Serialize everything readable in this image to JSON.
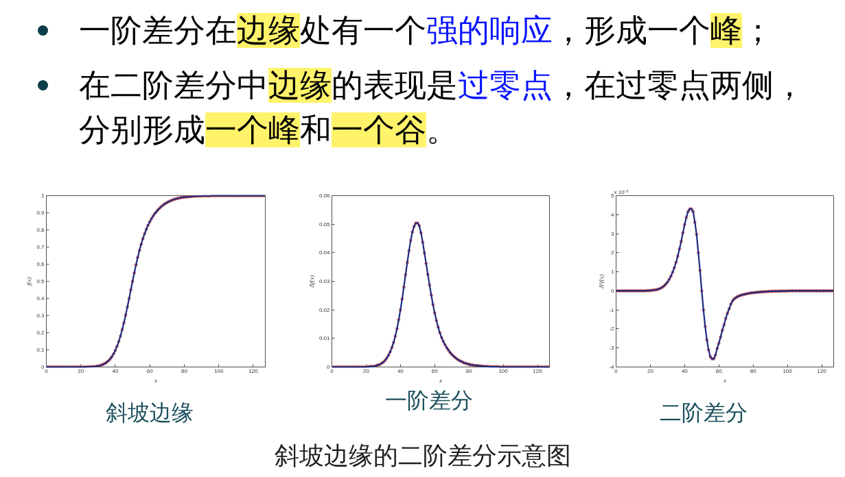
{
  "chart_data": [
    {
      "type": "other",
      "annotations": [
        "一阶差分在",
        "边缘",
        "处有一个",
        "强的响应",
        "，形成一个",
        "峰",
        "；",
        "在二阶差分中",
        "边缘",
        "的表现是",
        "过零点",
        "，在过零点两侧，",
        "分别形成",
        "一个峰",
        "和",
        "一个谷",
        "。"
      ]
    },
    {
      "type": "line",
      "title": "斜坡边缘",
      "xlabel": "x",
      "ylabel": "f(x)",
      "xlim": [
        0,
        127
      ],
      "ylim": [
        0,
        1
      ],
      "xticks": [
        0,
        20,
        40,
        60,
        80,
        100,
        120
      ],
      "yticks": [
        0,
        0.1,
        0.2,
        0.3,
        0.4,
        0.5,
        0.6,
        0.7,
        0.8,
        0.9,
        1
      ],
      "x": [
        0,
        1,
        2,
        3,
        4,
        5,
        6,
        7,
        8,
        9,
        10,
        11,
        12,
        13,
        14,
        15,
        16,
        17,
        18,
        19,
        20,
        21,
        22,
        23,
        24,
        25,
        26,
        27,
        28,
        29,
        30,
        31,
        32,
        33,
        34,
        35,
        36,
        37,
        38,
        39,
        40,
        41,
        42,
        43,
        44,
        45,
        46,
        47,
        48,
        49,
        50,
        51,
        52,
        53,
        54,
        55,
        56,
        57,
        58,
        59,
        60,
        61,
        62,
        63,
        64,
        65,
        66,
        67,
        68,
        69,
        70,
        71,
        72,
        73,
        74,
        75,
        76,
        77,
        78,
        79,
        80,
        81,
        82,
        83,
        84,
        85,
        86,
        87,
        88,
        89,
        90,
        91,
        92,
        93,
        94,
        95,
        96,
        97,
        98,
        99,
        100,
        101,
        102,
        103,
        104,
        105,
        106,
        107,
        108,
        109,
        110,
        111,
        112,
        113,
        114,
        115,
        116,
        117,
        118,
        119,
        120,
        121,
        122,
        123,
        124,
        125,
        126,
        127
      ],
      "series": [
        {
          "type": "scatter",
          "color": "#c0302a",
          "marker": "cross",
          "values": [
            0,
            0,
            0,
            0,
            0,
            0,
            0,
            0,
            0,
            0,
            0,
            0,
            0,
            0,
            0,
            0,
            0,
            0,
            0,
            0,
            0,
            0,
            0,
            0,
            0.001,
            0.001,
            0.001,
            0.002,
            0.003,
            0.004,
            0.006,
            0.008,
            0.011,
            0.016,
            0.021,
            0.028,
            0.036,
            0.047,
            0.06,
            0.077,
            0.097,
            0.121,
            0.149,
            0.181,
            0.218,
            0.258,
            0.303,
            0.35,
            0.399,
            0.45,
            0.5,
            0.549,
            0.596,
            0.64,
            0.68,
            0.716,
            0.749,
            0.778,
            0.804,
            0.827,
            0.848,
            0.866,
            0.882,
            0.896,
            0.909,
            0.92,
            0.93,
            0.939,
            0.947,
            0.954,
            0.96,
            0.965,
            0.97,
            0.974,
            0.978,
            0.981,
            0.984,
            0.986,
            0.988,
            0.99,
            0.991,
            0.992,
            0.993,
            0.994,
            0.995,
            0.996,
            0.997,
            0.997,
            0.998,
            0.998,
            0.998,
            0.999,
            0.999,
            0.999,
            0.999,
            0.999,
            1,
            1,
            1,
            1,
            1,
            1,
            1,
            1,
            1,
            1,
            1,
            1,
            1,
            1,
            1,
            1,
            1,
            1,
            1,
            1,
            1,
            1,
            1,
            1,
            1,
            1,
            1,
            1,
            1,
            1,
            1,
            1
          ]
        },
        {
          "type": "line",
          "color": "#1c2a80",
          "values": [
            0,
            0,
            0,
            0,
            0,
            0,
            0,
            0,
            0,
            0,
            0,
            0,
            0,
            0,
            0,
            0,
            0,
            0,
            0,
            0,
            0,
            0,
            0,
            0,
            0.001,
            0.001,
            0.001,
            0.002,
            0.003,
            0.004,
            0.006,
            0.008,
            0.011,
            0.016,
            0.021,
            0.028,
            0.036,
            0.047,
            0.06,
            0.077,
            0.097,
            0.121,
            0.149,
            0.181,
            0.218,
            0.258,
            0.303,
            0.35,
            0.399,
            0.45,
            0.5,
            0.549,
            0.596,
            0.64,
            0.68,
            0.716,
            0.749,
            0.778,
            0.804,
            0.827,
            0.848,
            0.866,
            0.882,
            0.896,
            0.909,
            0.92,
            0.93,
            0.939,
            0.947,
            0.954,
            0.96,
            0.965,
            0.97,
            0.974,
            0.978,
            0.981,
            0.984,
            0.986,
            0.988,
            0.99,
            0.991,
            0.992,
            0.993,
            0.994,
            0.995,
            0.996,
            0.997,
            0.997,
            0.998,
            0.998,
            0.998,
            0.999,
            0.999,
            0.999,
            0.999,
            0.999,
            1,
            1,
            1,
            1,
            1,
            1,
            1,
            1,
            1,
            1,
            1,
            1,
            1,
            1,
            1,
            1,
            1,
            1,
            1,
            1,
            1,
            1,
            1,
            1,
            1,
            1,
            1,
            1,
            1,
            1,
            1,
            1
          ]
        }
      ]
    },
    {
      "type": "line",
      "title": "一阶差分",
      "xlabel": "x",
      "ylabel": "Δf(x)",
      "xlim": [
        0,
        127
      ],
      "ylim": [
        0,
        0.06
      ],
      "xticks": [
        0,
        20,
        40,
        60,
        80,
        100,
        120
      ],
      "yticks": [
        0,
        0.01,
        0.02,
        0.03,
        0.04,
        0.05,
        0.06
      ],
      "x": [
        0,
        1,
        2,
        3,
        4,
        5,
        6,
        7,
        8,
        9,
        10,
        11,
        12,
        13,
        14,
        15,
        16,
        17,
        18,
        19,
        20,
        21,
        22,
        23,
        24,
        25,
        26,
        27,
        28,
        29,
        30,
        31,
        32,
        33,
        34,
        35,
        36,
        37,
        38,
        39,
        40,
        41,
        42,
        43,
        44,
        45,
        46,
        47,
        48,
        49,
        50,
        51,
        52,
        53,
        54,
        55,
        56,
        57,
        58,
        59,
        60,
        61,
        62,
        63,
        64,
        65,
        66,
        67,
        68,
        69,
        70,
        71,
        72,
        73,
        74,
        75,
        76,
        77,
        78,
        79,
        80,
        81,
        82,
        83,
        84,
        85,
        86,
        87,
        88,
        89,
        90,
        91,
        92,
        93,
        94,
        95,
        96,
        97,
        98,
        99,
        100,
        101,
        102,
        103,
        104,
        105,
        106,
        107,
        108,
        109,
        110,
        111,
        112,
        113,
        114,
        115,
        116,
        117,
        118,
        119,
        120,
        121,
        122,
        123,
        124,
        125,
        126,
        127
      ],
      "series": [
        {
          "type": "scatter",
          "color": "#c0302a",
          "marker": "cross",
          "values": [
            0,
            0,
            0,
            0,
            0,
            0,
            0,
            0,
            0,
            0,
            0,
            0,
            0,
            0,
            0,
            0,
            0,
            0,
            0,
            0,
            0,
            0.0001,
            0.0001,
            0.0002,
            0.0002,
            0.0003,
            0.0005,
            0.0007,
            0.0009,
            0.0013,
            0.0017,
            0.0023,
            0.0031,
            0.0041,
            0.0053,
            0.0068,
            0.0086,
            0.0108,
            0.0134,
            0.0165,
            0.02,
            0.0238,
            0.028,
            0.0323,
            0.0366,
            0.0407,
            0.0443,
            0.0473,
            0.0493,
            0.0504,
            0.0504,
            0.0495,
            0.047,
            0.0437,
            0.04,
            0.0362,
            0.0324,
            0.0287,
            0.0252,
            0.0219,
            0.0189,
            0.0163,
            0.014,
            0.012,
            0.0103,
            0.009,
            0.0078,
            0.0068,
            0.0059,
            0.0051,
            0.0044,
            0.0038,
            0.0033,
            0.0028,
            0.0024,
            0.0021,
            0.0018,
            0.0015,
            0.0013,
            0.0011,
            0.001,
            0.0008,
            0.0007,
            0.0006,
            0.0005,
            0.0005,
            0.0004,
            0.0003,
            0.0003,
            0.0002,
            0.0002,
            0.0002,
            0.0001,
            0.0001,
            0.0001,
            0.0001,
            0.0001,
            0.0001,
            0,
            0,
            0,
            0,
            0,
            0,
            0,
            0,
            0,
            0,
            0,
            0,
            0,
            0,
            0,
            0,
            0,
            0,
            0,
            0,
            0,
            0,
            0,
            0,
            0,
            0,
            0,
            0,
            0,
            0
          ]
        },
        {
          "type": "line",
          "color": "#1c2a80",
          "values": [
            0,
            0,
            0,
            0,
            0,
            0,
            0,
            0,
            0,
            0,
            0,
            0,
            0,
            0,
            0,
            0,
            0,
            0,
            0,
            0,
            0,
            0.0001,
            0.0001,
            0.0002,
            0.0002,
            0.0003,
            0.0005,
            0.0007,
            0.0009,
            0.0013,
            0.0017,
            0.0023,
            0.0031,
            0.0041,
            0.0053,
            0.0068,
            0.0086,
            0.0108,
            0.0134,
            0.0165,
            0.02,
            0.0238,
            0.028,
            0.0323,
            0.0366,
            0.0407,
            0.0443,
            0.0473,
            0.0493,
            0.0504,
            0.0504,
            0.0495,
            0.047,
            0.0437,
            0.04,
            0.0362,
            0.0324,
            0.0287,
            0.0252,
            0.0219,
            0.0189,
            0.0163,
            0.014,
            0.012,
            0.0103,
            0.009,
            0.0078,
            0.0068,
            0.0059,
            0.0051,
            0.0044,
            0.0038,
            0.0033,
            0.0028,
            0.0024,
            0.0021,
            0.0018,
            0.0015,
            0.0013,
            0.0011,
            0.001,
            0.0008,
            0.0007,
            0.0006,
            0.0005,
            0.0005,
            0.0004,
            0.0003,
            0.0003,
            0.0002,
            0.0002,
            0.0002,
            0.0001,
            0.0001,
            0.0001,
            0.0001,
            0.0001,
            0.0001,
            0,
            0,
            0,
            0,
            0,
            0,
            0,
            0,
            0,
            0,
            0,
            0,
            0,
            0,
            0,
            0,
            0,
            0,
            0,
            0,
            0,
            0,
            0,
            0,
            0,
            0,
            0,
            0,
            0,
            0
          ]
        }
      ]
    },
    {
      "type": "line",
      "title": "二阶差分",
      "xlabel": "x",
      "ylabel": "Δ²f(x)",
      "annotations": [
        "x 10⁻³"
      ],
      "xlim": [
        0,
        127
      ],
      "ylim": [
        -4,
        5
      ],
      "xticks": [
        0,
        20,
        40,
        60,
        80,
        100,
        120
      ],
      "yticks": [
        -4,
        -3,
        -2,
        -1,
        0,
        1,
        2,
        3,
        4,
        5
      ],
      "x": [
        0,
        1,
        2,
        3,
        4,
        5,
        6,
        7,
        8,
        9,
        10,
        11,
        12,
        13,
        14,
        15,
        16,
        17,
        18,
        19,
        20,
        21,
        22,
        23,
        24,
        25,
        26,
        27,
        28,
        29,
        30,
        31,
        32,
        33,
        34,
        35,
        36,
        37,
        38,
        39,
        40,
        41,
        42,
        43,
        44,
        45,
        46,
        47,
        48,
        49,
        50,
        51,
        52,
        53,
        54,
        55,
        56,
        57,
        58,
        59,
        60,
        61,
        62,
        63,
        64,
        65,
        66,
        67,
        68,
        69,
        70,
        71,
        72,
        73,
        74,
        75,
        76,
        77,
        78,
        79,
        80,
        81,
        82,
        83,
        84,
        85,
        86,
        87,
        88,
        89,
        90,
        91,
        92,
        93,
        94,
        95,
        96,
        97,
        98,
        99,
        100,
        101,
        102,
        103,
        104,
        105,
        106,
        107,
        108,
        109,
        110,
        111,
        112,
        113,
        114,
        115,
        116,
        117,
        118,
        119,
        120,
        121,
        122,
        123,
        124,
        125,
        126,
        127
      ],
      "series": [
        {
          "type": "scatter",
          "color": "#c0302a",
          "marker": "cross",
          "values": [
            0,
            0,
            0,
            0,
            0,
            0,
            0,
            0,
            0,
            0,
            0,
            0,
            0,
            0,
            0,
            0,
            0,
            0,
            0.01,
            0.01,
            0.02,
            0.03,
            0.04,
            0.05,
            0.07,
            0.1,
            0.14,
            0.19,
            0.26,
            0.35,
            0.46,
            0.6,
            0.77,
            0.98,
            1.22,
            1.5,
            1.82,
            2.2,
            2.6,
            3.05,
            3.48,
            3.86,
            4.16,
            4.3,
            4.3,
            4.16,
            3.6,
            2.96,
            2,
            1.07,
            0,
            -1,
            -1.87,
            -2.58,
            -3.1,
            -3.45,
            -3.57,
            -3.57,
            -3.37,
            -3.03,
            -2.75,
            -2.43,
            -2.07,
            -1.79,
            -1.45,
            -1.18,
            -0.94,
            -0.7,
            -0.52,
            -0.42,
            -0.35,
            -0.3,
            -0.26,
            -0.23,
            -0.2,
            -0.18,
            -0.16,
            -0.14,
            -0.12,
            -0.11,
            -0.1,
            -0.09,
            -0.08,
            -0.07,
            -0.06,
            -0.05,
            -0.05,
            -0.04,
            -0.04,
            -0.03,
            -0.03,
            -0.02,
            -0.02,
            -0.02,
            -0.02,
            -0.02,
            -0.01,
            -0.01,
            -0.01,
            -0.01,
            -0.01,
            0,
            0,
            0,
            0,
            0,
            0,
            0,
            0,
            0,
            0,
            0,
            0,
            0,
            0,
            0,
            0,
            0,
            0,
            0,
            0,
            0,
            0,
            0,
            0,
            0,
            0,
            0
          ]
        },
        {
          "type": "line",
          "color": "#1c2a80",
          "values": [
            0,
            0,
            0,
            0,
            0,
            0,
            0,
            0,
            0,
            0,
            0,
            0,
            0,
            0,
            0,
            0,
            0,
            0,
            0.01,
            0.01,
            0.02,
            0.03,
            0.04,
            0.05,
            0.07,
            0.1,
            0.14,
            0.19,
            0.26,
            0.35,
            0.46,
            0.6,
            0.77,
            0.98,
            1.22,
            1.5,
            1.82,
            2.2,
            2.6,
            3.05,
            3.48,
            3.86,
            4.16,
            4.3,
            4.3,
            4.16,
            3.6,
            2.96,
            2,
            1.07,
            0,
            -1,
            -1.87,
            -2.58,
            -3.1,
            -3.45,
            -3.57,
            -3.57,
            -3.37,
            -3.03,
            -2.75,
            -2.43,
            -2.07,
            -1.79,
            -1.45,
            -1.18,
            -0.94,
            -0.7,
            -0.52,
            -0.42,
            -0.35,
            -0.3,
            -0.26,
            -0.23,
            -0.2,
            -0.18,
            -0.16,
            -0.14,
            -0.12,
            -0.11,
            -0.1,
            -0.09,
            -0.08,
            -0.07,
            -0.06,
            -0.05,
            -0.05,
            -0.04,
            -0.04,
            -0.03,
            -0.03,
            -0.02,
            -0.02,
            -0.02,
            -0.02,
            -0.02,
            -0.01,
            -0.01,
            -0.01,
            -0.01,
            -0.01,
            0,
            0,
            0,
            0,
            0,
            0,
            0,
            0,
            0,
            0,
            0,
            0,
            0,
            0,
            0,
            0,
            0,
            0,
            0,
            0,
            0,
            0,
            0,
            0,
            0,
            0,
            0
          ]
        }
      ]
    },
    {
      "type": "other",
      "annotations": [
        "斜坡边缘的二阶差分示意图"
      ]
    }
  ]
}
